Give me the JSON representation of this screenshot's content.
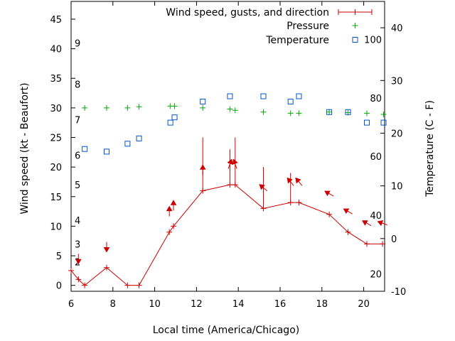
{
  "chart_data": {
    "type": "line",
    "xlabel": "Local time (America/Chicago)",
    "ylabel": "Wind speed (kt - Beaufort)",
    "y2label": "Temperature (C - F)",
    "xlim": [
      6,
      21
    ],
    "ylim": [
      -1,
      48
    ],
    "y2lim": [
      -10,
      45
    ],
    "x_ticks": [
      6,
      8,
      10,
      12,
      14,
      16,
      18,
      20
    ],
    "y_ticks": [
      0,
      5,
      10,
      15,
      20,
      25,
      30,
      35,
      40,
      45
    ],
    "y2_ticks": [
      -10,
      0,
      10,
      20,
      30,
      40
    ],
    "beaufort_labels": [
      {
        "label": "2",
        "y": 4
      },
      {
        "label": "3",
        "y": 7
      },
      {
        "label": "4",
        "y": 11
      },
      {
        "label": "5",
        "y": 17
      },
      {
        "label": "6",
        "y": 22
      },
      {
        "label": "7",
        "y": 28
      },
      {
        "label": "8",
        "y": 34
      },
      {
        "label": "9",
        "y": 41
      }
    ],
    "fahrenheit_labels": [
      {
        "label": "20",
        "y2": -6.7
      },
      {
        "label": "40",
        "y2": 4.4
      },
      {
        "label": "60",
        "y2": 15.6
      },
      {
        "label": "80",
        "y2": 26.7
      },
      {
        "label": "100",
        "y2": 37.8
      }
    ],
    "legend": {
      "position": "top-right",
      "entries": [
        "Wind speed, gusts, and direction",
        "Pressure",
        "Temperature"
      ]
    },
    "colors": {
      "wind": "#cc0000",
      "pressure": "#00aa00",
      "temperature": "#0055cc"
    },
    "series": [
      {
        "name": "Wind speed, gusts, and direction",
        "points": [
          {
            "x": 6.0,
            "speed": 2.5,
            "gust": null,
            "dir": null
          },
          {
            "x": 6.35,
            "speed": 1,
            "gust": 1.5,
            "dir": 0
          },
          {
            "x": 6.65,
            "speed": 0,
            "gust": null,
            "dir": null
          },
          {
            "x": 7.7,
            "speed": 3,
            "gust": null,
            "dir": 0
          },
          {
            "x": 8.7,
            "speed": 0,
            "gust": null,
            "dir": null
          },
          {
            "x": 9.25,
            "speed": 0,
            "gust": null,
            "dir": null
          },
          {
            "x": 10.7,
            "speed": 9,
            "gust": null,
            "dir": 180
          },
          {
            "x": 10.9,
            "speed": 10,
            "gust": null,
            "dir": 180
          },
          {
            "x": 12.3,
            "speed": 16,
            "gust": 25,
            "dir": 180
          },
          {
            "x": 13.6,
            "speed": 17,
            "gust": 23,
            "dir": 200
          },
          {
            "x": 13.85,
            "speed": 17,
            "gust": 25,
            "dir": 160
          },
          {
            "x": 15.2,
            "speed": 13,
            "gust": 20,
            "dir": 130
          },
          {
            "x": 16.5,
            "speed": 14,
            "gust": 19,
            "dir": 140
          },
          {
            "x": 16.9,
            "speed": 14,
            "gust": null,
            "dir": 140
          },
          {
            "x": 18.35,
            "speed": 12,
            "gust": null,
            "dir": 120
          },
          {
            "x": 19.25,
            "speed": 9,
            "gust": null,
            "dir": 120
          },
          {
            "x": 20.15,
            "speed": 7,
            "gust": null,
            "dir": 120
          },
          {
            "x": 20.9,
            "speed": 7,
            "gust": null,
            "dir": 110
          }
        ]
      },
      {
        "name": "Pressure",
        "x": [
          6.65,
          7.7,
          8.7,
          9.25,
          10.75,
          10.95,
          12.3,
          13.6,
          13.85,
          15.2,
          16.5,
          16.9,
          18.35,
          19.25,
          20.15,
          20.95
        ],
        "y": [
          30,
          30,
          30,
          30.2,
          30.3,
          30.3,
          30,
          29.8,
          29.6,
          29.3,
          29.1,
          29.1,
          29.3,
          29.2,
          29.1,
          28.9
        ]
      },
      {
        "name": "Temperature",
        "x": [
          6.65,
          7.7,
          8.7,
          9.25,
          10.75,
          10.95,
          12.3,
          13.6,
          15.2,
          16.5,
          16.9,
          18.35,
          19.25,
          20.15,
          20.95
        ],
        "y2": [
          17,
          16.5,
          18,
          19,
          22,
          23,
          26,
          27,
          27,
          26,
          27,
          24,
          24,
          22,
          22
        ]
      }
    ]
  }
}
